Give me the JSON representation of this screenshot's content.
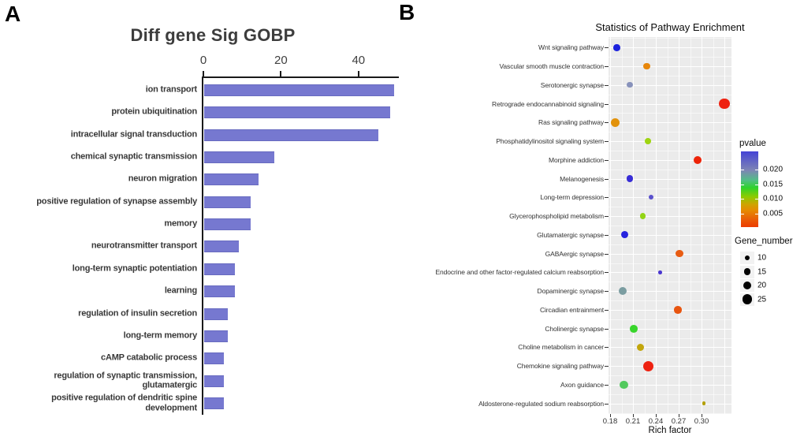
{
  "figure": {
    "panel_a_letter": "A",
    "panel_b_letter": "B"
  },
  "chart_data": [
    {
      "id": "gobp_bar_chart",
      "type": "bar",
      "orientation": "horizontal",
      "title": "Diff gene Sig GOBP",
      "xlabel": "",
      "ylabel": "",
      "xticks": [
        0,
        20,
        40
      ],
      "xlim": [
        0,
        51
      ],
      "grid": false,
      "bar_color": "#7678d0",
      "categories": [
        "ion transport",
        "protein ubiquitination",
        "intracellular signal transduction",
        "chemical synaptic transmission",
        "neuron migration",
        "positive regulation of synapse assembly",
        "memory",
        "neurotransmitter transport",
        "long-term synaptic potentiation",
        "learning",
        "regulation of insulin secretion",
        "long-term memory",
        "cAMP catabolic process",
        "regulation of synaptic transmission,\nglutamatergic",
        "positive regulation of dendritic spine\ndevelopment"
      ],
      "values": [
        49,
        48,
        45,
        18,
        14,
        12,
        12,
        9,
        8,
        8,
        6,
        6,
        5,
        5,
        5
      ]
    },
    {
      "id": "pathway_enrichment_dotplot",
      "type": "scatter",
      "title": "Statistics of Pathway Enrichment",
      "xlabel": "Rich factor",
      "ylabel": "",
      "xtick_labels": [
        "0.18",
        "0.21",
        "0.24",
        "0.27",
        "0.30"
      ],
      "xlim": [
        0.178,
        0.339
      ],
      "grid": true,
      "panel_background": "#ebebeb",
      "legend": {
        "pvalue_title": "pvalue",
        "pvalue_tick_labels": [
          "0.020",
          "0.015",
          "0.010",
          "0.005"
        ],
        "pvalue_colorbar_stops": [
          [
            "#4543d5",
            0
          ],
          [
            "#7e85b5",
            25
          ],
          [
            "#52bd86",
            38
          ],
          [
            "#2ed32b",
            48
          ],
          [
            "#8ecb00",
            60
          ],
          [
            "#cfa300",
            70
          ],
          [
            "#e68a00",
            78
          ],
          [
            "#e95c07",
            90
          ],
          [
            "#ec3c00",
            100
          ]
        ],
        "gene_number_title": "Gene_number",
        "gene_number_sizes": [
          10,
          15,
          20,
          25
        ]
      },
      "points": [
        {
          "pathway": "Wnt signaling pathway",
          "rich_factor": 0.189,
          "gene_number": 15,
          "color": "#1d23dd"
        },
        {
          "pathway": "Vascular smooth muscle contraction",
          "rich_factor": 0.228,
          "gene_number": 15,
          "color": "#e7860b"
        },
        {
          "pathway": "Serotonergic synapse",
          "rich_factor": 0.206,
          "gene_number": 12,
          "color": "#8892bb"
        },
        {
          "pathway": "Retrograde endocannabinoid signaling",
          "rich_factor": 0.33,
          "gene_number": 27,
          "color": "#ee2211"
        },
        {
          "pathway": "Ras signaling pathway",
          "rich_factor": 0.187,
          "gene_number": 22,
          "color": "#e2920b"
        },
        {
          "pathway": "Phosphatidylinositol signaling system",
          "rich_factor": 0.23,
          "gene_number": 13,
          "color": "#9ed411"
        },
        {
          "pathway": "Morphine addiction",
          "rich_factor": 0.295,
          "gene_number": 20,
          "color": "#ed2409"
        },
        {
          "pathway": "Melanogenesis",
          "rich_factor": 0.206,
          "gene_number": 15,
          "color": "#382dd6"
        },
        {
          "pathway": "Long-term depression",
          "rich_factor": 0.234,
          "gene_number": 9,
          "color": "#5a51cc"
        },
        {
          "pathway": "Glycerophospholipid metabolism",
          "rich_factor": 0.223,
          "gene_number": 13,
          "color": "#93d414"
        },
        {
          "pathway": "Glutamatergic synapse",
          "rich_factor": 0.199,
          "gene_number": 16,
          "color": "#2724de"
        },
        {
          "pathway": "GABAergic synapse",
          "rich_factor": 0.271,
          "gene_number": 17,
          "color": "#e85c12"
        },
        {
          "pathway": "Endocrine and other factor-regulated calcium reabsorption",
          "rich_factor": 0.246,
          "gene_number": 5,
          "color": "#4936cf"
        },
        {
          "pathway": "Dopaminergic synapse",
          "rich_factor": 0.197,
          "gene_number": 19,
          "color": "#7b9da1"
        },
        {
          "pathway": "Circadian entrainment",
          "rich_factor": 0.269,
          "gene_number": 17,
          "color": "#e85510"
        },
        {
          "pathway": "Cholinergic synapse",
          "rich_factor": 0.211,
          "gene_number": 18,
          "color": "#38d52b"
        },
        {
          "pathway": "Choline metabolism in cancer",
          "rich_factor": 0.22,
          "gene_number": 17,
          "color": "#c2a60c"
        },
        {
          "pathway": "Chemokine signaling pathway",
          "rich_factor": 0.23,
          "gene_number": 27,
          "color": "#ee2211"
        },
        {
          "pathway": "Axon guidance",
          "rich_factor": 0.198,
          "gene_number": 20,
          "color": "#52c95d"
        },
        {
          "pathway": "Aldosterone-regulated sodium reabsorption",
          "rich_factor": 0.303,
          "gene_number": 5,
          "color": "#b3a009"
        }
      ]
    }
  ]
}
